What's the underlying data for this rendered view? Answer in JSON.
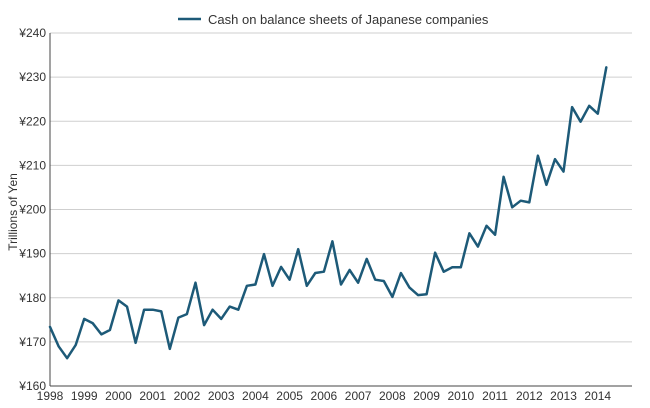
{
  "chart_data": {
    "type": "line",
    "title": "",
    "xlabel": "",
    "ylabel": "Trillions of Yen",
    "ylim": [
      160,
      240
    ],
    "xlim": [
      1998,
      2015
    ],
    "y_ticks": [
      160,
      170,
      180,
      190,
      200,
      210,
      220,
      230,
      240
    ],
    "y_tick_labels": [
      "¥160",
      "¥170",
      "¥180",
      "¥190",
      "¥200",
      "¥210",
      "¥220",
      "¥230",
      "¥240"
    ],
    "x_ticks": [
      1998,
      1999,
      2000,
      2001,
      2002,
      2003,
      2004,
      2005,
      2006,
      2007,
      2008,
      2009,
      2010,
      2011,
      2012,
      2013,
      2014
    ],
    "x_tick_labels": [
      "1998",
      "1999",
      "2000",
      "2001",
      "2002",
      "2003",
      "2004",
      "2005",
      "2006",
      "2007",
      "2008",
      "2009",
      "2010",
      "2011",
      "2012",
      "2013",
      "2014"
    ],
    "grid": "horizontal",
    "legend_position": "top",
    "series": [
      {
        "name": "Cash on balance sheets of Japanese companies",
        "color": "#1d5a78",
        "x": [
          1998.0,
          1998.25,
          1998.5,
          1998.75,
          1999.0,
          1999.25,
          1999.5,
          1999.75,
          2000.0,
          2000.25,
          2000.5,
          2000.75,
          2001.0,
          2001.25,
          2001.5,
          2001.75,
          2002.0,
          2002.25,
          2002.5,
          2002.75,
          2003.0,
          2003.25,
          2003.5,
          2003.75,
          2004.0,
          2004.25,
          2004.5,
          2004.75,
          2005.0,
          2005.25,
          2005.5,
          2005.75,
          2006.0,
          2006.25,
          2006.5,
          2006.75,
          2007.0,
          2007.25,
          2007.5,
          2007.75,
          2008.0,
          2008.25,
          2008.5,
          2008.75,
          2009.0,
          2009.25,
          2009.5,
          2009.75,
          2010.0,
          2010.25,
          2010.5,
          2010.75,
          2011.0,
          2011.25,
          2011.5,
          2011.75,
          2012.0,
          2012.25,
          2012.5,
          2012.75,
          2013.0,
          2013.25,
          2013.5,
          2013.75,
          2014.0,
          2014.25
        ],
        "values": [
          173.4,
          169.0,
          166.3,
          169.3,
          175.2,
          174.2,
          171.7,
          172.7,
          179.4,
          178.0,
          169.8,
          177.3,
          177.3,
          176.9,
          168.4,
          175.5,
          176.3,
          183.4,
          173.8,
          177.3,
          175.2,
          178.0,
          177.3,
          182.7,
          183.0,
          189.9,
          182.7,
          187.0,
          184.1,
          191.0,
          182.7,
          185.6,
          185.9,
          192.8,
          183.0,
          186.3,
          183.4,
          188.8,
          184.1,
          183.8,
          180.2,
          185.6,
          182.3,
          180.6,
          180.8,
          190.2,
          185.9,
          186.9,
          186.9,
          194.6,
          191.6,
          196.3,
          194.3,
          207.4,
          200.5,
          202.0,
          201.6,
          212.2,
          205.6,
          211.4,
          208.6,
          223.2,
          219.9,
          223.5,
          221.7,
          232.2
        ]
      }
    ]
  }
}
